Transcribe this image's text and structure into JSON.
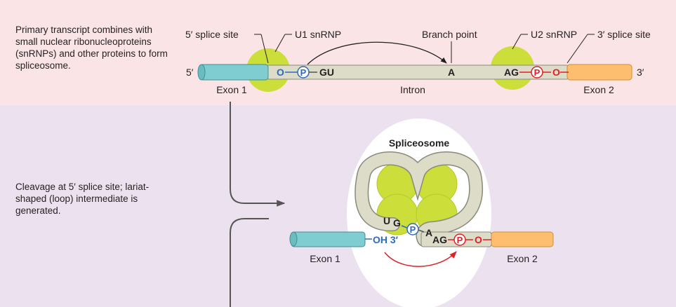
{
  "captions": {
    "step1": "Primary transcript combines with small nuclear ribonucleoproteins (snRNPs) and other proteins to form spliceosome.",
    "step2": "Cleavage at 5′ splice site; lariat-shaped (loop) intermediate is generated."
  },
  "top": {
    "five_prime_splice_site": "5′ splice site",
    "u1_snrnp": "U1 snRNP",
    "branch_point": "Branch point",
    "u2_snrnp": "U2 snRNP",
    "three_prime_splice_site": "3′ splice site",
    "end_5": "5′",
    "end_3": "3′",
    "o_left": "O",
    "p_left": "P",
    "gu": "GU",
    "a": "A",
    "ag": "AG",
    "p_right": "P",
    "o_right": "O",
    "exon1": "Exon 1",
    "intron": "Intron",
    "exon2": "Exon 2"
  },
  "bottom": {
    "spliceosome": "Spliceosome",
    "u": "U",
    "g": "G",
    "p_mid": "P",
    "a": "A",
    "oh3": "OH 3′",
    "ag": "AG",
    "p_right": "P",
    "o_right": "O",
    "exon1": "Exon 1",
    "exon2": "Exon 2"
  },
  "colors": {
    "exon1": "#7fcdd1",
    "exon2": "#fdbf6f",
    "intron": "#dcdcc8",
    "snrnp": "#cbde3a",
    "phosphate_blue": "#2e6bb8",
    "phosphate_red": "#e01f26",
    "top_panel": "#fbe4e6",
    "bottom_panel": "#ece2ef"
  }
}
